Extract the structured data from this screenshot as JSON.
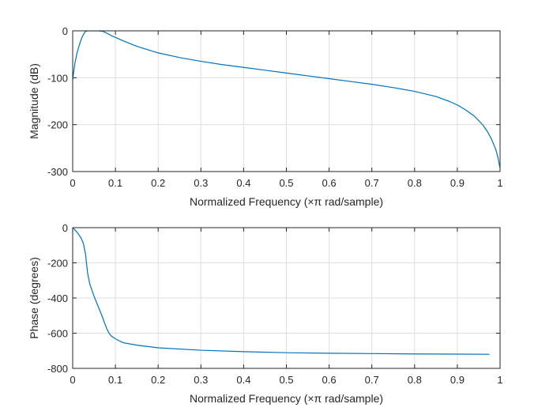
{
  "chart_data": [
    {
      "type": "line",
      "xlabel": "Normalized Frequency  (×π rad/sample)",
      "ylabel": "Magnitude (dB)",
      "xlim": [
        0,
        1
      ],
      "ylim": [
        -300,
        0
      ],
      "xticks": [
        "0",
        "0.1",
        "0.2",
        "0.3",
        "0.4",
        "0.5",
        "0.6",
        "0.7",
        "0.8",
        "0.9",
        "1"
      ],
      "yticks": [
        "-300",
        "-200",
        "-100",
        "0"
      ],
      "grid": true,
      "line_color": "#0072BD",
      "series": [
        {
          "x": [
            0.0,
            0.002,
            0.005,
            0.01,
            0.015,
            0.02,
            0.025,
            0.03,
            0.035,
            0.04,
            0.05,
            0.06,
            0.07,
            0.08,
            0.09,
            0.1,
            0.12,
            0.15,
            0.2,
            0.25,
            0.3,
            0.35,
            0.4,
            0.45,
            0.5,
            0.55,
            0.6,
            0.65,
            0.7,
            0.75,
            0.8,
            0.85,
            0.88,
            0.9,
            0.92,
            0.94,
            0.96,
            0.97,
            0.98,
            0.99,
            0.995,
            1.0
          ],
          "y": [
            -105,
            -90,
            -70,
            -48,
            -32,
            -18,
            -8,
            -1,
            0,
            0,
            0,
            0,
            -1,
            -5,
            -10,
            -14,
            -22,
            -33,
            -47,
            -57,
            -65,
            -72,
            -78,
            -84,
            -90,
            -96,
            -102,
            -108,
            -114,
            -121,
            -129,
            -140,
            -150,
            -158,
            -169,
            -182,
            -201,
            -214,
            -231,
            -253,
            -270,
            -293
          ]
        }
      ]
    },
    {
      "type": "line",
      "xlabel": "Normalized Frequency  (×π rad/sample)",
      "ylabel": "Phase (degrees)",
      "xlim": [
        0,
        1
      ],
      "ylim": [
        -800,
        0
      ],
      "xticks": [
        "0",
        "0.1",
        "0.2",
        "0.3",
        "0.4",
        "0.5",
        "0.6",
        "0.7",
        "0.8",
        "0.9",
        "1"
      ],
      "yticks": [
        "-800",
        "-600",
        "-400",
        "-200",
        "0"
      ],
      "grid": true,
      "line_color": "#0072BD",
      "series": [
        {
          "x": [
            0.0,
            0.01,
            0.02,
            0.025,
            0.03,
            0.035,
            0.04,
            0.05,
            0.06,
            0.07,
            0.075,
            0.08,
            0.085,
            0.09,
            0.1,
            0.11,
            0.12,
            0.15,
            0.2,
            0.3,
            0.4,
            0.5,
            0.6,
            0.7,
            0.8,
            0.9,
            0.975
          ],
          "y": [
            0,
            -25,
            -60,
            -90,
            -150,
            -260,
            -320,
            -390,
            -450,
            -510,
            -545,
            -575,
            -600,
            -615,
            -632,
            -645,
            -655,
            -668,
            -683,
            -697,
            -705,
            -711,
            -714,
            -716,
            -718,
            -719,
            -720
          ]
        }
      ]
    }
  ]
}
